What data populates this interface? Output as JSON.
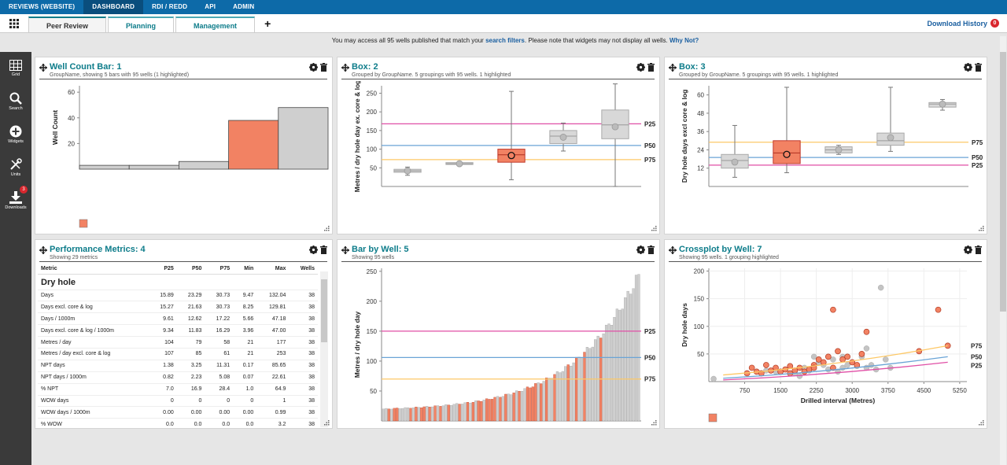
{
  "topnav": {
    "items": [
      "REVIEWS (WEBSITE)",
      "DASHBOARD",
      "RDI / REDD",
      "API",
      "ADMIN"
    ],
    "active": 1
  },
  "tabs": {
    "items": [
      "Peer Review",
      "Planning",
      "Management"
    ],
    "active": 0,
    "add": "+"
  },
  "download_history": {
    "label": "Download History",
    "count": "0"
  },
  "notice": {
    "pre": "You may access all 95 wells published that match your ",
    "link1": "search filters",
    "mid": ". Please note that widgets may not display all wells. ",
    "link2": "Why Not?"
  },
  "sidebar": {
    "items": [
      {
        "label": "Grid",
        "icon": "grid-icon"
      },
      {
        "label": "Search",
        "icon": "search-icon"
      },
      {
        "label": "Widgets",
        "icon": "plus-circle-icon"
      },
      {
        "label": "Units",
        "icon": "tools-icon"
      },
      {
        "label": "Downloads",
        "icon": "download-icon",
        "badge": "3"
      }
    ]
  },
  "colors": {
    "highlight": "#f28263",
    "bar": "#cfcfcf",
    "p25": "#e04fa6",
    "p50": "#6aa4d6",
    "p75": "#fdc866",
    "accent": "#0d7c8a"
  },
  "panels": {
    "p1": {
      "title": "Well Count Bar: 1",
      "subtitle": "GroupName, showing 5 bars with 95 wells (1 highlighted)"
    },
    "p2": {
      "title": "Box: 2",
      "subtitle": "Grouped by GroupName. 5 groupings with 95 wells. 1 highlighted"
    },
    "p3": {
      "title": "Box: 3",
      "subtitle": "Grouped by GroupName. 5 groupings with 95 wells. 1 highlighted"
    },
    "p4": {
      "title": "Performance Metrics: 4",
      "subtitle": "Showing 29 metrics"
    },
    "p5": {
      "title": "Bar by Well: 5",
      "subtitle": "Showing 95 wells"
    },
    "p6": {
      "title": "Crossplot by Well: 7",
      "subtitle": "Showing 95 wells. 1 grouping highlighted"
    }
  },
  "chart_data": [
    {
      "type": "bar",
      "name": "Well Count Bar",
      "ylabel": "Well Count",
      "yticks": [
        20,
        40,
        60
      ],
      "ylim": [
        0,
        65
      ],
      "values": [
        3,
        3,
        6,
        38,
        48
      ],
      "highlight": [
        3
      ]
    },
    {
      "type": "box",
      "name": "Box: 2",
      "ylabel": "Metres / dry hole day ex. core & log",
      "yticks": [
        50,
        100,
        150,
        200,
        250
      ],
      "ylim": [
        0,
        270
      ],
      "boxes": [
        {
          "min": 30,
          "q1": 38,
          "med": 42,
          "q3": 46,
          "max": 52,
          "mean": 42
        },
        {
          "min": 57,
          "q1": 59,
          "med": 61,
          "q3": 64,
          "max": 67,
          "mean": 61
        },
        {
          "min": 18,
          "q1": 65,
          "med": 85,
          "q3": 100,
          "max": 255,
          "mean": 83
        },
        {
          "min": 95,
          "q1": 115,
          "med": 135,
          "q3": 150,
          "max": 170,
          "mean": 132
        },
        {
          "min": 0,
          "q1": 128,
          "med": 165,
          "q3": 205,
          "max": 275,
          "mean": 160
        }
      ],
      "highlight": 2,
      "lines": [
        {
          "label": "P25",
          "value": 168,
          "color": "#e04fa6"
        },
        {
          "label": "P50",
          "value": 110,
          "color": "#6aa4d6"
        },
        {
          "label": "P75",
          "value": 72,
          "color": "#fdc866"
        }
      ]
    },
    {
      "type": "box",
      "name": "Box: 3",
      "ylabel": "Dry hole days excl core & log",
      "yticks": [
        12,
        24,
        36,
        48,
        60
      ],
      "ylim": [
        0,
        66
      ],
      "boxes": [
        {
          "min": 6,
          "q1": 12,
          "med": 17,
          "q3": 21,
          "max": 40,
          "mean": 16
        },
        {
          "min": 9,
          "q1": 15,
          "med": 22,
          "q3": 30,
          "max": 65,
          "mean": 21
        },
        {
          "min": 21,
          "q1": 22,
          "med": 24,
          "q3": 26,
          "max": 27,
          "mean": 24
        },
        {
          "min": 23,
          "q1": 27,
          "med": 30,
          "q3": 35,
          "max": 65,
          "mean": 32
        },
        {
          "min": 50,
          "q1": 52,
          "med": 54,
          "q3": 55,
          "max": 57,
          "mean": 54
        }
      ],
      "highlight": 1,
      "lines": [
        {
          "label": "P75",
          "value": 29,
          "color": "#fdc866"
        },
        {
          "label": "P50",
          "value": 19,
          "color": "#6aa4d6"
        },
        {
          "label": "P25",
          "value": 14,
          "color": "#e04fa6"
        }
      ]
    },
    {
      "type": "bar",
      "name": "Bar by Well",
      "ylabel": "Metres / dry hole day",
      "yticks": [
        50,
        100,
        150,
        200,
        250
      ],
      "ylim": [
        0,
        255
      ],
      "count": 95,
      "min": 20,
      "max": 245,
      "lines": [
        {
          "label": "P25",
          "value": 150,
          "color": "#e04fa6"
        },
        {
          "label": "P50",
          "value": 106,
          "color": "#6aa4d6"
        },
        {
          "label": "P75",
          "value": 70,
          "color": "#fdc866"
        }
      ]
    },
    {
      "type": "scatter",
      "name": "Crossplot by Well",
      "xlabel": "Drilled interval (Metres)",
      "ylabel": "Dry hole days",
      "xticks": [
        750,
        1500,
        2250,
        3000,
        3750,
        4500,
        5250
      ],
      "yticks": [
        50,
        100,
        150,
        200
      ],
      "xlim": [
        0,
        5400
      ],
      "ylim": [
        0,
        205
      ],
      "grey": [
        [
          100,
          5
        ],
        [
          800,
          15
        ],
        [
          1200,
          20
        ],
        [
          1400,
          18
        ],
        [
          1600,
          22
        ],
        [
          1800,
          15
        ],
        [
          2000,
          25
        ],
        [
          2100,
          20
        ],
        [
          2300,
          35
        ],
        [
          2400,
          30
        ],
        [
          2500,
          22
        ],
        [
          2600,
          40
        ],
        [
          2800,
          25
        ],
        [
          2900,
          30
        ],
        [
          3000,
          35
        ],
        [
          3100,
          28
        ],
        [
          3200,
          45
        ],
        [
          3300,
          25
        ],
        [
          3400,
          30
        ],
        [
          3500,
          22
        ],
        [
          3700,
          40
        ],
        [
          3800,
          25
        ],
        [
          3600,
          170
        ],
        [
          2200,
          45
        ],
        [
          2700,
          18
        ],
        [
          1900,
          10
        ],
        [
          3300,
          60
        ],
        [
          2800,
          45
        ]
      ],
      "orange": [
        [
          800,
          15
        ],
        [
          900,
          25
        ],
        [
          1000,
          18
        ],
        [
          1100,
          15
        ],
        [
          1200,
          30
        ],
        [
          1300,
          20
        ],
        [
          1400,
          25
        ],
        [
          1500,
          18
        ],
        [
          1600,
          22
        ],
        [
          1700,
          15
        ],
        [
          1800,
          20
        ],
        [
          1900,
          25
        ],
        [
          2000,
          18
        ],
        [
          2100,
          22
        ],
        [
          2200,
          30
        ],
        [
          2300,
          40
        ],
        [
          2400,
          35
        ],
        [
          2600,
          25
        ],
        [
          2700,
          55
        ],
        [
          2800,
          40
        ],
        [
          2900,
          45
        ],
        [
          3000,
          35
        ],
        [
          3100,
          30
        ],
        [
          3200,
          50
        ],
        [
          2600,
          130
        ],
        [
          3300,
          90
        ],
        [
          4400,
          55
        ],
        [
          4800,
          130
        ],
        [
          5000,
          65
        ],
        [
          1700,
          28
        ],
        [
          2500,
          45
        ],
        [
          2200,
          25
        ]
      ],
      "lines": [
        {
          "label": "P75",
          "color": "#fdc866",
          "pts": [
            [
              300,
              12
            ],
            [
              5000,
              65
            ]
          ]
        },
        {
          "label": "P50",
          "color": "#6aa4d6",
          "pts": [
            [
              300,
              6
            ],
            [
              5000,
              45
            ]
          ]
        },
        {
          "label": "P25",
          "color": "#e04fa6",
          "pts": [
            [
              300,
              3
            ],
            [
              5000,
              35
            ]
          ]
        }
      ]
    }
  ],
  "perf_table": {
    "headers": [
      "Metric",
      "P25",
      "P50",
      "P75",
      "Min",
      "Max",
      "Wells"
    ],
    "section": "Dry hole",
    "rows": [
      [
        "Days",
        "15.89",
        "23.29",
        "30.73",
        "9.47",
        "132.04",
        "38"
      ],
      [
        "Days excl. core & log",
        "15.27",
        "21.63",
        "30.73",
        "8.25",
        "129.81",
        "38"
      ],
      [
        "Days / 1000m",
        "9.61",
        "12.62",
        "17.22",
        "5.66",
        "47.18",
        "38"
      ],
      [
        "Days excl. core & log / 1000m",
        "9.34",
        "11.83",
        "16.29",
        "3.96",
        "47.00",
        "38"
      ],
      [
        "Metres / day",
        "104",
        "79",
        "58",
        "21",
        "177",
        "38"
      ],
      [
        "Metres / day excl. core & log",
        "107",
        "85",
        "61",
        "21",
        "253",
        "38"
      ],
      [
        "NPT days",
        "1.38",
        "3.25",
        "11.31",
        "0.17",
        "85.65",
        "38"
      ],
      [
        "NPT days / 1000m",
        "0.82",
        "2.23",
        "5.08",
        "0.07",
        "22.61",
        "38"
      ],
      [
        "% NPT",
        "7.0",
        "16.9",
        "28.4",
        "1.0",
        "64.9",
        "38"
      ],
      [
        "WOW days",
        "0",
        "0",
        "0",
        "0",
        "1",
        "38"
      ],
      [
        "WOW days / 1000m",
        "0.00",
        "0.00",
        "0.00",
        "0.00",
        "0.99",
        "38"
      ],
      [
        "% WOW",
        "0.0",
        "0.0",
        "0.0",
        "0.0",
        "3.2",
        "38"
      ]
    ]
  }
}
